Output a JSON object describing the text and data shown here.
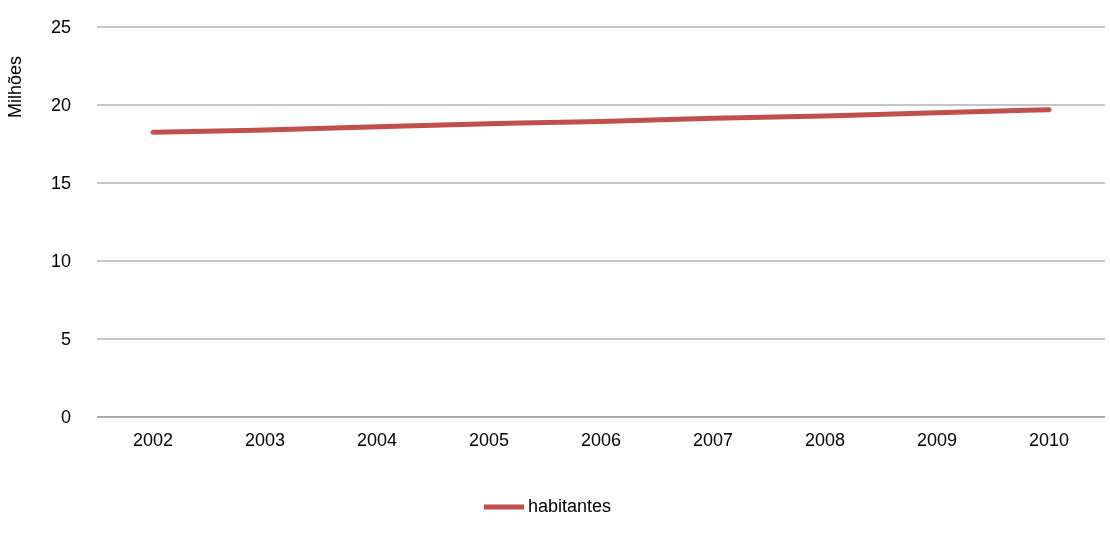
{
  "chart_data": {
    "type": "line",
    "ylabel": "Milhões",
    "categories": [
      "2002",
      "2003",
      "2004",
      "2005",
      "2006",
      "2007",
      "2008",
      "2009",
      "2010"
    ],
    "series": [
      {
        "name": "habitantes",
        "color": "#c0504d",
        "values": [
          18.25,
          18.4,
          18.6,
          18.8,
          18.95,
          19.15,
          19.3,
          19.5,
          19.7
        ]
      }
    ],
    "ylim": [
      0,
      25
    ],
    "yticks": [
      0,
      5,
      10,
      15,
      20,
      25
    ],
    "grid": "y",
    "legend": "bottom",
    "marker": "none",
    "line_style": "solid"
  }
}
